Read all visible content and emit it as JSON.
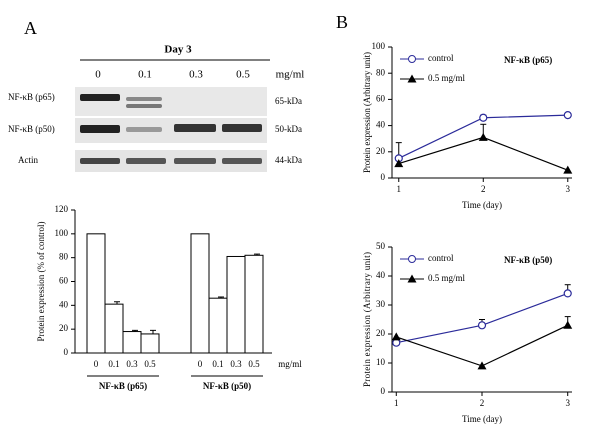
{
  "panel_labels": [
    "A",
    "B"
  ],
  "blot": {
    "title": "Day 3",
    "lanes": [
      "0",
      "0.1",
      "0.3",
      "0.5"
    ],
    "unit": "mg/ml",
    "rows": [
      {
        "name": "NF-κB (p65)",
        "size": "65-kDa"
      },
      {
        "name": "NF-κB (p50)",
        "size": "50-kDa"
      },
      {
        "name": "Actin",
        "size": "44-kDa"
      }
    ]
  },
  "chart_data": [
    {
      "type": "bar",
      "y_label": "Protein expression (% of control)",
      "unit_label": "mg/ml",
      "ylim": [
        0,
        120
      ],
      "yticks": [
        0,
        20,
        40,
        60,
        80,
        100,
        120
      ],
      "color": "#ffffff",
      "groups": [
        {
          "name": "NF-κB (p65)",
          "categories": [
            "0",
            "0.1",
            "0.3",
            "0.5"
          ],
          "values": [
            100,
            41,
            18,
            16
          ],
          "errors": [
            0,
            2,
            1,
            3
          ]
        },
        {
          "name": "NF-κB (p50)",
          "categories": [
            "0",
            "0.1",
            "0.3",
            "0.5"
          ],
          "values": [
            100,
            46,
            81,
            82
          ],
          "errors": [
            0,
            1,
            0,
            1
          ]
        }
      ]
    },
    {
      "type": "line",
      "annotation": "NF-κB (p65)",
      "x_label": "Time (day)",
      "y_label": "Protein expression (Arbitrary unit)",
      "x": [
        1,
        2,
        3
      ],
      "xlim": [
        0.92,
        3.05
      ],
      "xticks": [
        1,
        2,
        3
      ],
      "ylim": [
        0,
        100
      ],
      "yticks": [
        0,
        20,
        40,
        60,
        80,
        100
      ],
      "series": [
        {
          "name": "control",
          "color": "#2b2b9a",
          "marker": "circle",
          "values": [
            15,
            46,
            48
          ],
          "errors": [
            12,
            2,
            0
          ]
        },
        {
          "name": "0.5 mg/ml",
          "color": "#000000",
          "marker": "triangle",
          "values": [
            11,
            31,
            6
          ],
          "errors": [
            0,
            10,
            0
          ]
        }
      ]
    },
    {
      "type": "line",
      "annotation": "NF-κB (p50)",
      "x_label": "Time (day)",
      "y_label": "Protein expression (Arbitrary unit)",
      "x": [
        1,
        2,
        3
      ],
      "xlim": [
        0.95,
        3.05
      ],
      "xticks": [
        1,
        2,
        3
      ],
      "ylim": [
        0,
        50
      ],
      "yticks": [
        0,
        10,
        20,
        30,
        40,
        50
      ],
      "series": [
        {
          "name": "control",
          "color": "#2b2b9a",
          "marker": "circle",
          "values": [
            17,
            23,
            34
          ],
          "errors": [
            0,
            2,
            3
          ]
        },
        {
          "name": "0.5 mg/ml",
          "color": "#000000",
          "marker": "triangle",
          "values": [
            19,
            9,
            23
          ],
          "errors": [
            0,
            0,
            3
          ]
        }
      ]
    }
  ]
}
